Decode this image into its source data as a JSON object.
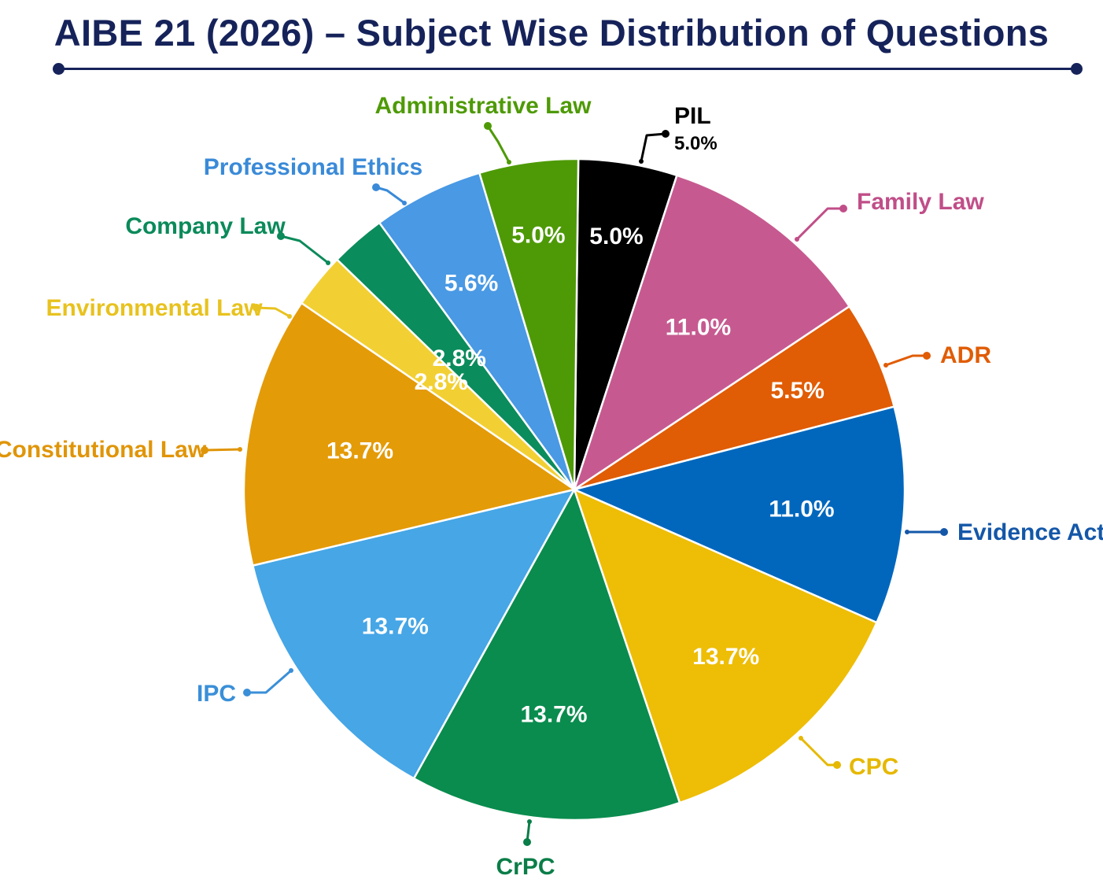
{
  "title": "AIBE 21 (2026) – Subject Wise Distribution of Questions",
  "chart_data": {
    "type": "pie",
    "title": "AIBE 21 (2026) – Subject Wise Distribution of Questions",
    "slices": [
      {
        "label": "PIL",
        "value": 5.0,
        "value_label": "5.0%",
        "color": "#000000"
      },
      {
        "label": "Family Law",
        "value": 11.0,
        "value_label": "11.0%",
        "color": "#c65a90"
      },
      {
        "label": "ADR",
        "value": 5.5,
        "value_label": "5.5%",
        "color": "#e05c05"
      },
      {
        "label": "Evidence Act",
        "value": 11.0,
        "value_label": "11.0%",
        "color": "#0067bd"
      },
      {
        "label": "CPC",
        "value": 13.7,
        "value_label": "13.7%",
        "color": "#eebd06"
      },
      {
        "label": "CrPC",
        "value": 13.7,
        "value_label": "13.7%",
        "color": "#0a8c4e"
      },
      {
        "label": "IPC",
        "value": 13.7,
        "value_label": "13.7%",
        "color": "#46a6e6"
      },
      {
        "label": "Constitutional Law",
        "value": 13.7,
        "value_label": "13.7%",
        "color": "#e49b08"
      },
      {
        "label": "Environmental Law",
        "value": 2.8,
        "value_label": "2.8%",
        "color": "#f2d033"
      },
      {
        "label": "Company Law",
        "value": 2.8,
        "value_label": "2.8%",
        "color": "#0b8c5c"
      },
      {
        "label": "Professional Ethics",
        "value": 5.6,
        "value_label": "5.6%",
        "color": "#4999e4"
      },
      {
        "label": "Administrative Law",
        "value": 5.0,
        "value_label": "5.0%",
        "color": "#4e9a06"
      }
    ],
    "outside_labels": [
      {
        "label": "PIL",
        "sub": "5.0%",
        "color": "#000000"
      },
      {
        "label": "Family Law",
        "color": "#c04e88"
      },
      {
        "label": "ADR",
        "color": "#e05c05"
      },
      {
        "label": "Evidence Act",
        "color": "#1457a8"
      },
      {
        "label": "CPC",
        "color": "#e6b800"
      },
      {
        "label": "CrPC",
        "color": "#0a7d48"
      },
      {
        "label": "IPC",
        "color": "#3a8fd8"
      },
      {
        "label": "Constitutional Law",
        "color": "#e09508"
      },
      {
        "label": "Environmental Law",
        "color": "#e8c21e"
      },
      {
        "label": "Company Law",
        "color": "#0b8a5a"
      },
      {
        "label": "Professional Ethics",
        "color": "#3a8ad8"
      },
      {
        "label": "Administrative Law",
        "color": "#4e9a06"
      }
    ]
  },
  "colors": {
    "title": "#16235a",
    "slice_border": "#ffffff",
    "value_text": "#ffffff"
  }
}
